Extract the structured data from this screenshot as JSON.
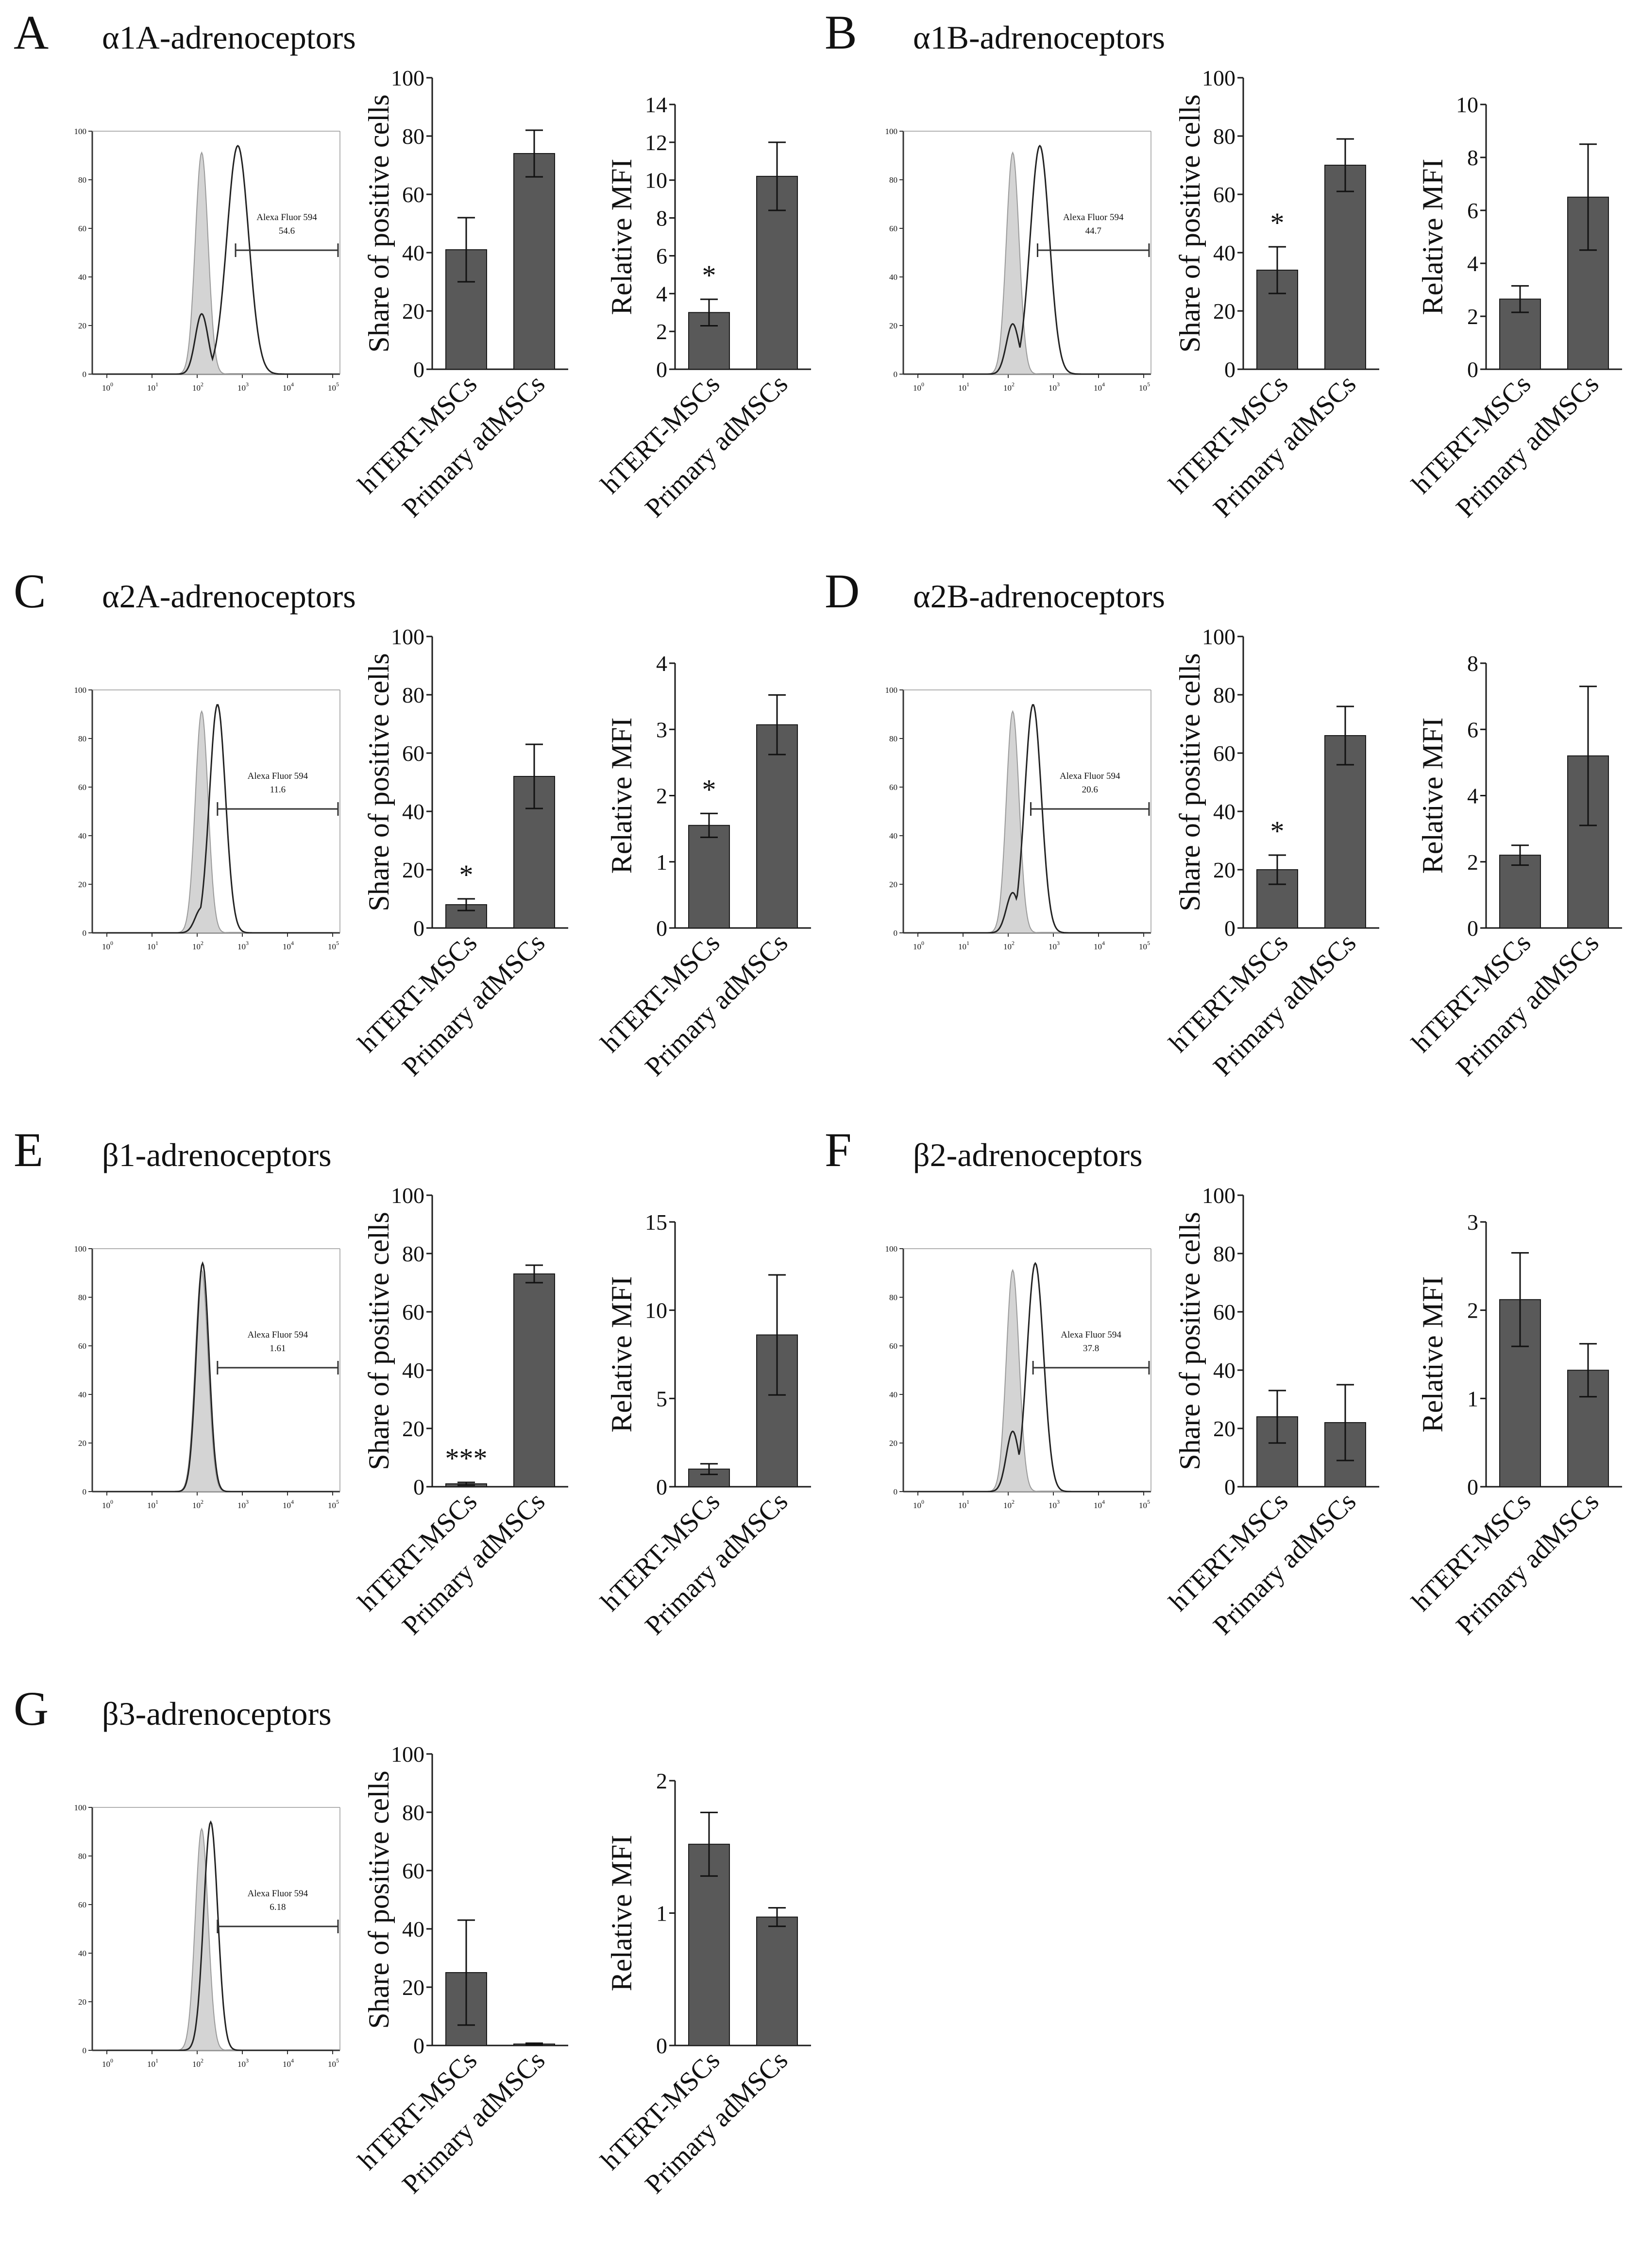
{
  "colors": {
    "bar": "#595959",
    "bar_stroke": "#1a1a1a",
    "axis": "#1a1a1a",
    "isotype_fill": "#d4d4d4",
    "isotype_stroke": "#9a9a9a",
    "stained_line": "#222222"
  },
  "panels": [
    {
      "letter": "A",
      "title": "α1A-adrenoceptors",
      "histogram": {
        "gate_label": "Alexa Fluor 594",
        "gate_value": "54.6",
        "y_ticks": [
          "0",
          "20",
          "40",
          "60",
          "80",
          "100"
        ],
        "x_ticks": [
          "10",
          "10",
          "10",
          "10",
          "10",
          "10"
        ],
        "x_exps": [
          "0",
          "1",
          "2",
          "3",
          "4",
          "5"
        ],
        "isotype_peak": 2.1,
        "stained_peak": 2.9,
        "stained_width": 0.34,
        "shoulder": 0.12
      }
    },
    {
      "letter": "B",
      "title": "α1B-adrenoceptors",
      "histogram": {
        "gate_label": "Alexa Fluor 594",
        "gate_value": "44.7",
        "y_ticks": [
          "0",
          "20",
          "40",
          "60",
          "80",
          "100"
        ],
        "x_ticks": [
          "10",
          "10",
          "10",
          "10",
          "10",
          "10"
        ],
        "x_exps": [
          "0",
          "1",
          "2",
          "3",
          "4",
          "5"
        ],
        "isotype_peak": 2.1,
        "stained_peak": 2.7,
        "stained_width": 0.3,
        "shoulder": 0.1
      }
    },
    {
      "letter": "C",
      "title": "α2A-adrenoceptors",
      "histogram": {
        "gate_label": "Alexa Fluor 594",
        "gate_value": "11.6",
        "y_ticks": [
          "0",
          "20",
          "40",
          "60",
          "80",
          "100"
        ],
        "x_ticks": [
          "10",
          "10",
          "10",
          "10",
          "10",
          "10"
        ],
        "x_exps": [
          "0",
          "1",
          "2",
          "3",
          "4",
          "5"
        ],
        "isotype_peak": 2.1,
        "stained_peak": 2.45,
        "stained_width": 0.25,
        "shoulder": 0.05
      }
    },
    {
      "letter": "D",
      "title": "α2B-adrenoceptors",
      "histogram": {
        "gate_label": "Alexa Fluor 594",
        "gate_value": "20.6",
        "y_ticks": [
          "0",
          "20",
          "40",
          "60",
          "80",
          "100"
        ],
        "x_ticks": [
          "10",
          "10",
          "10",
          "10",
          "10",
          "10"
        ],
        "x_exps": [
          "0",
          "1",
          "2",
          "3",
          "4",
          "5"
        ],
        "isotype_peak": 2.1,
        "stained_peak": 2.55,
        "stained_width": 0.26,
        "shoulder": 0.08
      }
    },
    {
      "letter": "E",
      "title": "β1-adrenoceptors",
      "histogram": {
        "gate_label": "Alexa Fluor 594",
        "gate_value": "1.61",
        "y_ticks": [
          "0",
          "20",
          "40",
          "60",
          "80",
          "100"
        ],
        "x_ticks": [
          "10",
          "10",
          "10",
          "10",
          "10",
          "10"
        ],
        "x_exps": [
          "0",
          "1",
          "2",
          "3",
          "4",
          "5"
        ],
        "isotype_peak": 2.1,
        "stained_peak": 2.12,
        "stained_width": 0.2,
        "shoulder": 0.0
      }
    },
    {
      "letter": "F",
      "title": "β2-adrenoceptors",
      "histogram": {
        "gate_label": "Alexa Fluor 594",
        "gate_value": "37.8",
        "y_ticks": [
          "0",
          "20",
          "40",
          "60",
          "80",
          "100"
        ],
        "x_ticks": [
          "10",
          "10",
          "10",
          "10",
          "10",
          "10"
        ],
        "x_exps": [
          "0",
          "1",
          "2",
          "3",
          "4",
          "5"
        ],
        "isotype_peak": 2.1,
        "stained_peak": 2.6,
        "stained_width": 0.26,
        "shoulder": 0.12
      }
    },
    {
      "letter": "G",
      "title": "β3-adrenoceptors",
      "histogram": {
        "gate_label": "Alexa Fluor 594",
        "gate_value": "6.18",
        "y_ticks": [
          "0",
          "20",
          "40",
          "60",
          "80",
          "100"
        ],
        "x_ticks": [
          "10",
          "10",
          "10",
          "10",
          "10",
          "10"
        ],
        "x_exps": [
          "0",
          "1",
          "2",
          "3",
          "4",
          "5"
        ],
        "isotype_peak": 2.1,
        "stained_peak": 2.3,
        "stained_width": 0.22,
        "shoulder": 0.0
      }
    }
  ],
  "chart_data": [
    {
      "panel": "A",
      "type": "bar",
      "ylabel": "Share of positive cells",
      "categories": [
        "hTERT-MSCs",
        "Primary adMSCs"
      ],
      "values": [
        41,
        74
      ],
      "errors": [
        11,
        8
      ],
      "ylim": [
        0,
        100
      ],
      "yticks": [
        0,
        20,
        40,
        60,
        80,
        100
      ],
      "significance": [
        "",
        ""
      ]
    },
    {
      "panel": "A",
      "type": "bar",
      "ylabel": "Relative MFI",
      "categories": [
        "hTERT-MSCs",
        "Primary adMSCs"
      ],
      "values": [
        3.0,
        10.2
      ],
      "errors": [
        0.7,
        1.8
      ],
      "ylim": [
        0,
        14
      ],
      "yticks": [
        0,
        2,
        4,
        6,
        8,
        10,
        12,
        14
      ],
      "significance": [
        "*",
        ""
      ]
    },
    {
      "panel": "B",
      "type": "bar",
      "ylabel": "Share of positive cells",
      "categories": [
        "hTERT-MSCs",
        "Primary adMSCs"
      ],
      "values": [
        34,
        70
      ],
      "errors": [
        8,
        9
      ],
      "ylim": [
        0,
        100
      ],
      "yticks": [
        0,
        20,
        40,
        60,
        80,
        100
      ],
      "significance": [
        "*",
        ""
      ]
    },
    {
      "panel": "B",
      "type": "bar",
      "ylabel": "Relative MFI",
      "categories": [
        "hTERT-MSCs",
        "Primary adMSCs"
      ],
      "values": [
        2.65,
        6.5
      ],
      "errors": [
        0.5,
        2.0
      ],
      "ylim": [
        0,
        10
      ],
      "yticks": [
        0,
        2,
        4,
        6,
        8,
        10
      ],
      "significance": [
        "",
        ""
      ]
    },
    {
      "panel": "C",
      "type": "bar",
      "ylabel": "Share of positive cells",
      "categories": [
        "hTERT-MSCs",
        "Primary adMSCs"
      ],
      "values": [
        8,
        52
      ],
      "errors": [
        2,
        11
      ],
      "ylim": [
        0,
        100
      ],
      "yticks": [
        0,
        20,
        40,
        60,
        80,
        100
      ],
      "significance": [
        "*",
        ""
      ]
    },
    {
      "panel": "C",
      "type": "bar",
      "ylabel": "Relative MFI",
      "categories": [
        "hTERT-MSCs",
        "Primary adMSCs"
      ],
      "values": [
        1.55,
        3.07
      ],
      "errors": [
        0.18,
        0.45
      ],
      "ylim": [
        0,
        4
      ],
      "yticks": [
        0,
        1,
        2,
        3,
        4
      ],
      "significance": [
        "*",
        ""
      ]
    },
    {
      "panel": "D",
      "type": "bar",
      "ylabel": "Share of positive cells",
      "categories": [
        "hTERT-MSCs",
        "Primary adMSCs"
      ],
      "values": [
        20,
        66
      ],
      "errors": [
        5,
        10
      ],
      "ylim": [
        0,
        100
      ],
      "yticks": [
        0,
        20,
        40,
        60,
        80,
        100
      ],
      "significance": [
        "*",
        ""
      ]
    },
    {
      "panel": "D",
      "type": "bar",
      "ylabel": "Relative MFI",
      "categories": [
        "hTERT-MSCs",
        "Primary adMSCs"
      ],
      "values": [
        2.2,
        5.2
      ],
      "errors": [
        0.3,
        2.1
      ],
      "ylim": [
        0,
        8
      ],
      "yticks": [
        0,
        2,
        4,
        6,
        8
      ],
      "significance": [
        "",
        ""
      ]
    },
    {
      "panel": "E",
      "type": "bar",
      "ylabel": "Share of positive cells",
      "categories": [
        "hTERT-MSCs",
        "Primary adMSCs"
      ],
      "values": [
        1,
        73
      ],
      "errors": [
        0.5,
        3
      ],
      "ylim": [
        0,
        100
      ],
      "yticks": [
        0,
        20,
        40,
        60,
        80,
        100
      ],
      "significance": [
        "***",
        ""
      ]
    },
    {
      "panel": "E",
      "type": "bar",
      "ylabel": "Relative MFI",
      "categories": [
        "hTERT-MSCs",
        "Primary adMSCs"
      ],
      "values": [
        1.0,
        8.6
      ],
      "errors": [
        0.3,
        3.4
      ],
      "ylim": [
        0,
        15
      ],
      "yticks": [
        0,
        5,
        10,
        15
      ],
      "significance": [
        "",
        ""
      ]
    },
    {
      "panel": "F",
      "type": "bar",
      "ylabel": "Share of positive cells",
      "categories": [
        "hTERT-MSCs",
        "Primary adMSCs"
      ],
      "values": [
        24,
        22
      ],
      "errors": [
        9,
        13
      ],
      "ylim": [
        0,
        100
      ],
      "yticks": [
        0,
        20,
        40,
        60,
        80,
        100
      ],
      "significance": [
        "",
        ""
      ]
    },
    {
      "panel": "F",
      "type": "bar",
      "ylabel": "Relative MFI",
      "categories": [
        "hTERT-MSCs",
        "Primary adMSCs"
      ],
      "values": [
        2.12,
        1.32
      ],
      "errors": [
        0.53,
        0.3
      ],
      "ylim": [
        0,
        3
      ],
      "yticks": [
        0,
        1,
        2,
        3
      ],
      "significance": [
        "",
        ""
      ]
    },
    {
      "panel": "G",
      "type": "bar",
      "ylabel": "Share of positive cells",
      "categories": [
        "hTERT-MSCs",
        "Primary adMSCs"
      ],
      "values": [
        25,
        0.5
      ],
      "errors": [
        18,
        0.3
      ],
      "ylim": [
        0,
        100
      ],
      "yticks": [
        0,
        20,
        40,
        60,
        80,
        100
      ],
      "significance": [
        "",
        ""
      ]
    },
    {
      "panel": "G",
      "type": "bar",
      "ylabel": "Relative MFI",
      "categories": [
        "hTERT-MSCs",
        "Primary adMSCs"
      ],
      "values": [
        1.52,
        0.97
      ],
      "errors": [
        0.24,
        0.07
      ],
      "ylim": [
        0,
        2
      ],
      "yticks": [
        0,
        1,
        2
      ],
      "significance": [
        "",
        ""
      ]
    }
  ]
}
